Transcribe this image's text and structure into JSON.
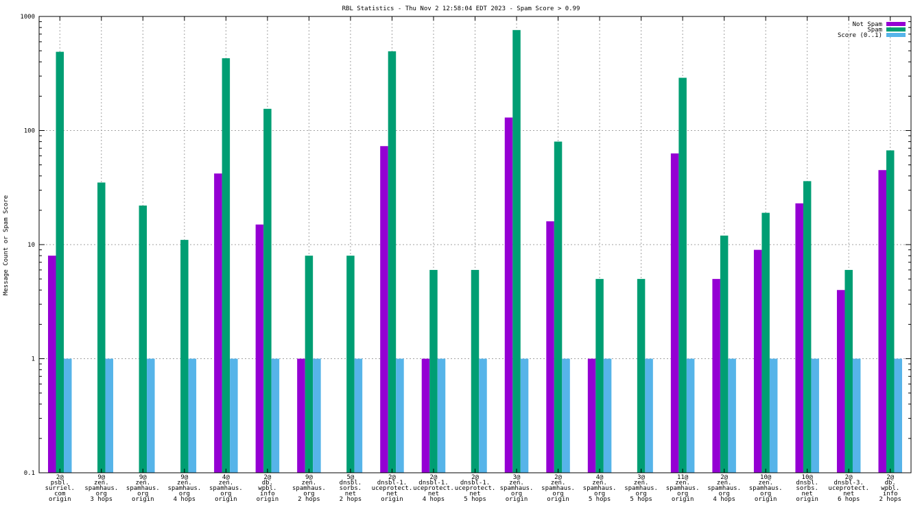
{
  "chart_data": {
    "type": "bar",
    "title": "RBL Statistics - Thu Nov  2 12:58:04 EDT 2023 - Spam Score > 0.99",
    "ylabel": "Message Count or Spam Score",
    "xlabel": "",
    "yscale": "log",
    "ylim": [
      0.1,
      1000
    ],
    "yticks": [
      "0.1",
      "1",
      "10",
      "100",
      "1000"
    ],
    "grid": true,
    "legend_position": "top-right",
    "categories": [
      [
        "2@",
        "psbl.",
        "surriel.",
        "com",
        "origin"
      ],
      [
        "9@",
        "zen.",
        "spamhaus.",
        "org",
        "3 hops"
      ],
      [
        "9@",
        "zen.",
        "spamhaus.",
        "org",
        "origin"
      ],
      [
        "9@",
        "zen.",
        "spamhaus.",
        "org",
        "4 hops"
      ],
      [
        "4@",
        "zen.",
        "spamhaus.",
        "org",
        "origin"
      ],
      [
        "2@",
        "db.",
        "wpbl.",
        "info",
        "origin"
      ],
      [
        "9@",
        "zen.",
        "spamhaus.",
        "org",
        "2 hops"
      ],
      [
        "5@",
        "dnsbl.",
        "sorbs.",
        "net",
        "2 hops"
      ],
      [
        "2@",
        "dnsbl-1.",
        "uceprotect.",
        "net",
        "origin"
      ],
      [
        "2@",
        "dnsbl-1.",
        "uceprotect.",
        "net",
        "4 hops"
      ],
      [
        "2@",
        "dnsbl-1.",
        "uceprotect.",
        "net",
        "5 hops"
      ],
      [
        "3@",
        "zen.",
        "spamhaus.",
        "org",
        "origin"
      ],
      [
        "2@",
        "zen.",
        "spamhaus.",
        "org",
        "origin"
      ],
      [
        "4@",
        "zen.",
        "spamhaus.",
        "org",
        "5 hops"
      ],
      [
        "3@",
        "zen.",
        "spamhaus.",
        "org",
        "5 hops"
      ],
      [
        "11@",
        "zen.",
        "spamhaus.",
        "org",
        "origin"
      ],
      [
        "2@",
        "zen.",
        "spamhaus.",
        "org",
        "4 hops"
      ],
      [
        "10@",
        "zen.",
        "spamhaus.",
        "org",
        "origin"
      ],
      [
        "10@",
        "dnsbl.",
        "sorbs.",
        "net",
        "origin"
      ],
      [
        "2@",
        "dnsbl-3.",
        "uceprotect.",
        "net",
        "6 hops"
      ],
      [
        "2@",
        "db.",
        "wpbl.",
        "info",
        "2 hops"
      ]
    ],
    "series": [
      {
        "name": "Not Spam",
        "color": "#9400d3",
        "values": [
          8,
          null,
          null,
          null,
          42,
          15,
          1,
          null,
          73,
          1,
          null,
          130,
          16,
          1,
          null,
          63,
          5,
          9,
          23,
          4,
          45
        ]
      },
      {
        "name": "Spam",
        "color": "#009e73",
        "values": [
          490,
          35,
          22,
          11,
          430,
          155,
          8,
          8,
          495,
          6,
          6,
          760,
          80,
          5,
          5,
          290,
          12,
          19,
          36,
          6,
          67
        ]
      },
      {
        "name": "Score (0..1)",
        "color": "#56b4e9",
        "values": [
          1,
          1,
          1,
          1,
          1,
          1,
          1,
          1,
          1,
          1,
          1,
          1,
          1,
          1,
          1,
          1,
          1,
          1,
          1,
          1,
          1
        ]
      }
    ]
  }
}
